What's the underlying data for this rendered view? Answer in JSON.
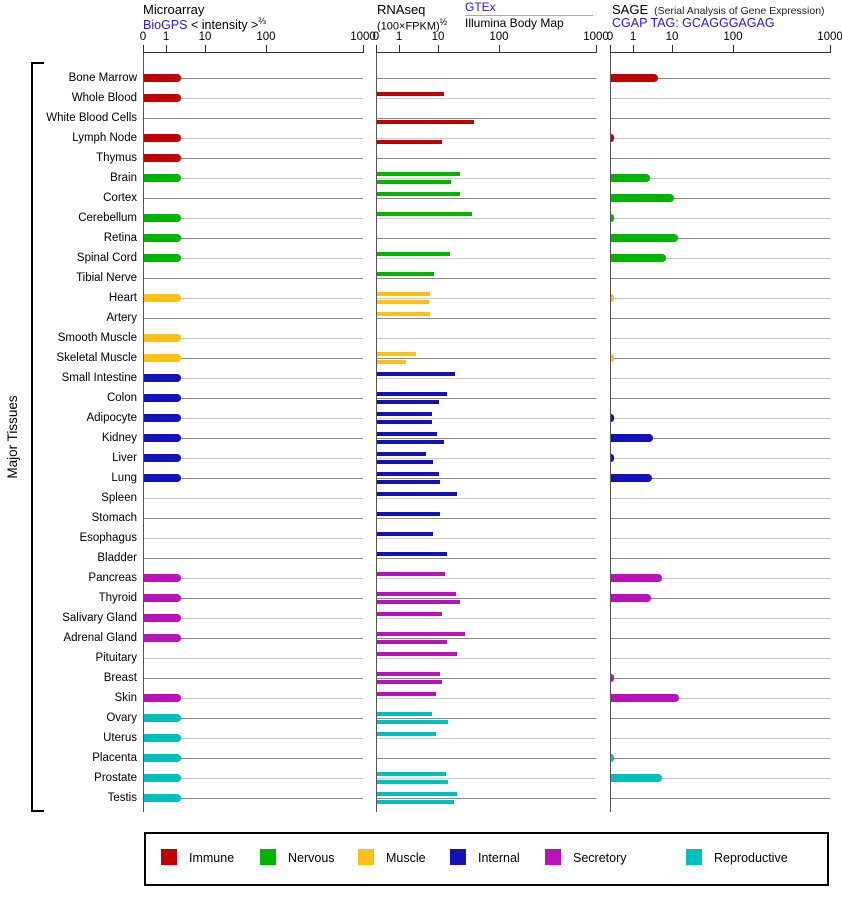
{
  "side": {
    "label": "Major Tissues"
  },
  "headers": {
    "microarray": {
      "title": "Microarray",
      "link": "BioGPS",
      "subtitle": "< intensity >",
      "exponent": "⅔"
    },
    "rnaseq": {
      "title": "RNAseq",
      "formula": "(100×FPKM)",
      "exponent": "½",
      "gtex_link": "GTEx",
      "illumina_label": "Illumina Body Map"
    },
    "sage": {
      "title": "SAGE",
      "note": "(Serial Analysis of Gene Expression)",
      "link": "CGAP",
      "tag_text": "TAG: GCAGGGAGAG"
    }
  },
  "axis": {
    "ticks": [
      "0",
      "1",
      "10",
      "100",
      "1000"
    ]
  },
  "legend": {
    "items": [
      {
        "label": "Immune",
        "color": "#c00000"
      },
      {
        "label": "Nervous",
        "color": "#00b400"
      },
      {
        "label": "Muscle",
        "color": "#fcc016"
      },
      {
        "label": "Internal",
        "color": "#1212b8"
      },
      {
        "label": "Secretory",
        "color": "#b812b8"
      },
      {
        "label": "Reproductive",
        "color": "#00bfbc"
      }
    ]
  },
  "chart_data": {
    "type": "bar",
    "orientation": "horizontal",
    "title": "Tissue expression: Microarray (BioGPS), RNAseq (GTEx / Illumina Body Map), SAGE (CGAP TAG: GCAGGGAGAG)",
    "axis_ticks": [
      0,
      1,
      10,
      100,
      1000
    ],
    "axis_note": "shared non-linear intensity scale per panel; 0,1,10,100,1000 anchors",
    "panels": [
      "Microarray intensity^(2/3)",
      "RNAseq (100×FPKM)^(1/2) — series GTEx (upper bar) and Illumina Body Map (lower bar)",
      "SAGE tag counts"
    ],
    "groups": {
      "Immune": "#c00000",
      "Nervous": "#00b400",
      "Muscle": "#fcc016",
      "Internal": "#1212b8",
      "Secretory": "#b812b8",
      "Reproductive": "#00bfbc"
    },
    "tissues": [
      {
        "name": "Bone Marrow",
        "group": "Immune",
        "microarray": 2.3,
        "gtex": null,
        "illumina": null,
        "sage": 4
      },
      {
        "name": "Whole Blood",
        "group": "Immune",
        "microarray": 2.3,
        "gtex": 12,
        "illumina": null,
        "sage": null
      },
      {
        "name": "White Blood Cells",
        "group": "Immune",
        "microarray": null,
        "gtex": null,
        "illumina": 37,
        "sage": null
      },
      {
        "name": "Lymph Node",
        "group": "Immune",
        "microarray": 2.3,
        "gtex": null,
        "illumina": 11,
        "sage": 0.15
      },
      {
        "name": "Thymus",
        "group": "Immune",
        "microarray": 2.3,
        "gtex": null,
        "illumina": null,
        "sage": null
      },
      {
        "name": "Brain",
        "group": "Nervous",
        "microarray": 2.3,
        "gtex": 22,
        "illumina": 16,
        "sage": 2.5
      },
      {
        "name": "Cortex",
        "group": "Nervous",
        "microarray": null,
        "gtex": 22,
        "illumina": null,
        "sage": 10.5
      },
      {
        "name": "Cerebellum",
        "group": "Nervous",
        "microarray": 2.3,
        "gtex": 35,
        "illumina": null,
        "sage": 0.1
      },
      {
        "name": "Retina",
        "group": "Nervous",
        "microarray": 2.3,
        "gtex": null,
        "illumina": null,
        "sage": 12
      },
      {
        "name": "Spinal Cord",
        "group": "Nervous",
        "microarray": 2.3,
        "gtex": 15,
        "illumina": null,
        "sage": 6.5
      },
      {
        "name": "Tibial Nerve",
        "group": "Nervous",
        "microarray": null,
        "gtex": 7.5,
        "illumina": null,
        "sage": null
      },
      {
        "name": "Heart",
        "group": "Muscle",
        "microarray": 2.3,
        "gtex": 6,
        "illumina": 5.5,
        "sage": 0.1
      },
      {
        "name": "Artery",
        "group": "Muscle",
        "microarray": null,
        "gtex": 6,
        "illumina": null,
        "sage": null
      },
      {
        "name": "Smooth Muscle",
        "group": "Muscle",
        "microarray": 2.3,
        "gtex": null,
        "illumina": null,
        "sage": null
      },
      {
        "name": "Skeletal Muscle",
        "group": "Muscle",
        "microarray": 2.3,
        "gtex": 2.6,
        "illumina": 1.4,
        "sage": 0.1
      },
      {
        "name": "Small Intestine",
        "group": "Internal",
        "microarray": 2.3,
        "gtex": 18,
        "illumina": null,
        "sage": null
      },
      {
        "name": "Colon",
        "group": "Internal",
        "microarray": 2.3,
        "gtex": 13.5,
        "illumina": 10,
        "sage": null
      },
      {
        "name": "Adipocyte",
        "group": "Internal",
        "microarray": 2.3,
        "gtex": 6.5,
        "illumina": 6.5,
        "sage": 0.1
      },
      {
        "name": "Kidney",
        "group": "Internal",
        "microarray": 2.3,
        "gtex": 9,
        "illumina": 12,
        "sage": 3
      },
      {
        "name": "Liver",
        "group": "Internal",
        "microarray": 2.3,
        "gtex": 4.5,
        "illumina": 7,
        "sage": 0.1
      },
      {
        "name": "Lung",
        "group": "Internal",
        "microarray": 2.3,
        "gtex": 10,
        "illumina": 10.5,
        "sage": 2.8
      },
      {
        "name": "Spleen",
        "group": "Internal",
        "microarray": null,
        "gtex": 20,
        "illumina": null,
        "sage": null
      },
      {
        "name": "Stomach",
        "group": "Internal",
        "microarray": null,
        "gtex": 10.5,
        "illumina": null,
        "sage": null
      },
      {
        "name": "Esophagus",
        "group": "Internal",
        "microarray": null,
        "gtex": 7,
        "illumina": null,
        "sage": null
      },
      {
        "name": "Bladder",
        "group": "Internal",
        "microarray": null,
        "gtex": 13.5,
        "illumina": null,
        "sage": null
      },
      {
        "name": "Pancreas",
        "group": "Secretory",
        "microarray": 2.3,
        "gtex": 12.5,
        "illumina": null,
        "sage": 5.2
      },
      {
        "name": "Thyroid",
        "group": "Secretory",
        "microarray": 2.3,
        "gtex": 19,
        "illumina": 22,
        "sage": 2.7
      },
      {
        "name": "Salivary Gland",
        "group": "Secretory",
        "microarray": 2.3,
        "gtex": 11,
        "illumina": null,
        "sage": null
      },
      {
        "name": "Adrenal Gland",
        "group": "Secretory",
        "microarray": 2.3,
        "gtex": 27,
        "illumina": 13.5,
        "sage": null
      },
      {
        "name": "Pituitary",
        "group": "Secretory",
        "microarray": null,
        "gtex": 20,
        "illumina": null,
        "sage": null
      },
      {
        "name": "Breast",
        "group": "Secretory",
        "microarray": null,
        "gtex": 10.5,
        "illumina": 11,
        "sage": 0.1
      },
      {
        "name": "Skin",
        "group": "Secretory",
        "microarray": 2.3,
        "gtex": 8.5,
        "illumina": null,
        "sage": 12.5
      },
      {
        "name": "Ovary",
        "group": "Reproductive",
        "microarray": 2.3,
        "gtex": 6.5,
        "illumina": 14,
        "sage": null
      },
      {
        "name": "Uterus",
        "group": "Reproductive",
        "microarray": 2.3,
        "gtex": 8.5,
        "illumina": null,
        "sage": null
      },
      {
        "name": "Placenta",
        "group": "Reproductive",
        "microarray": 2.3,
        "gtex": null,
        "illumina": null,
        "sage": 0.1
      },
      {
        "name": "Prostate",
        "group": "Reproductive",
        "microarray": 2.3,
        "gtex": 13,
        "illumina": 14,
        "sage": 5.2
      },
      {
        "name": "Testis",
        "group": "Reproductive",
        "microarray": 2.3,
        "gtex": 20,
        "illumina": 17.5,
        "sage": null
      }
    ]
  }
}
